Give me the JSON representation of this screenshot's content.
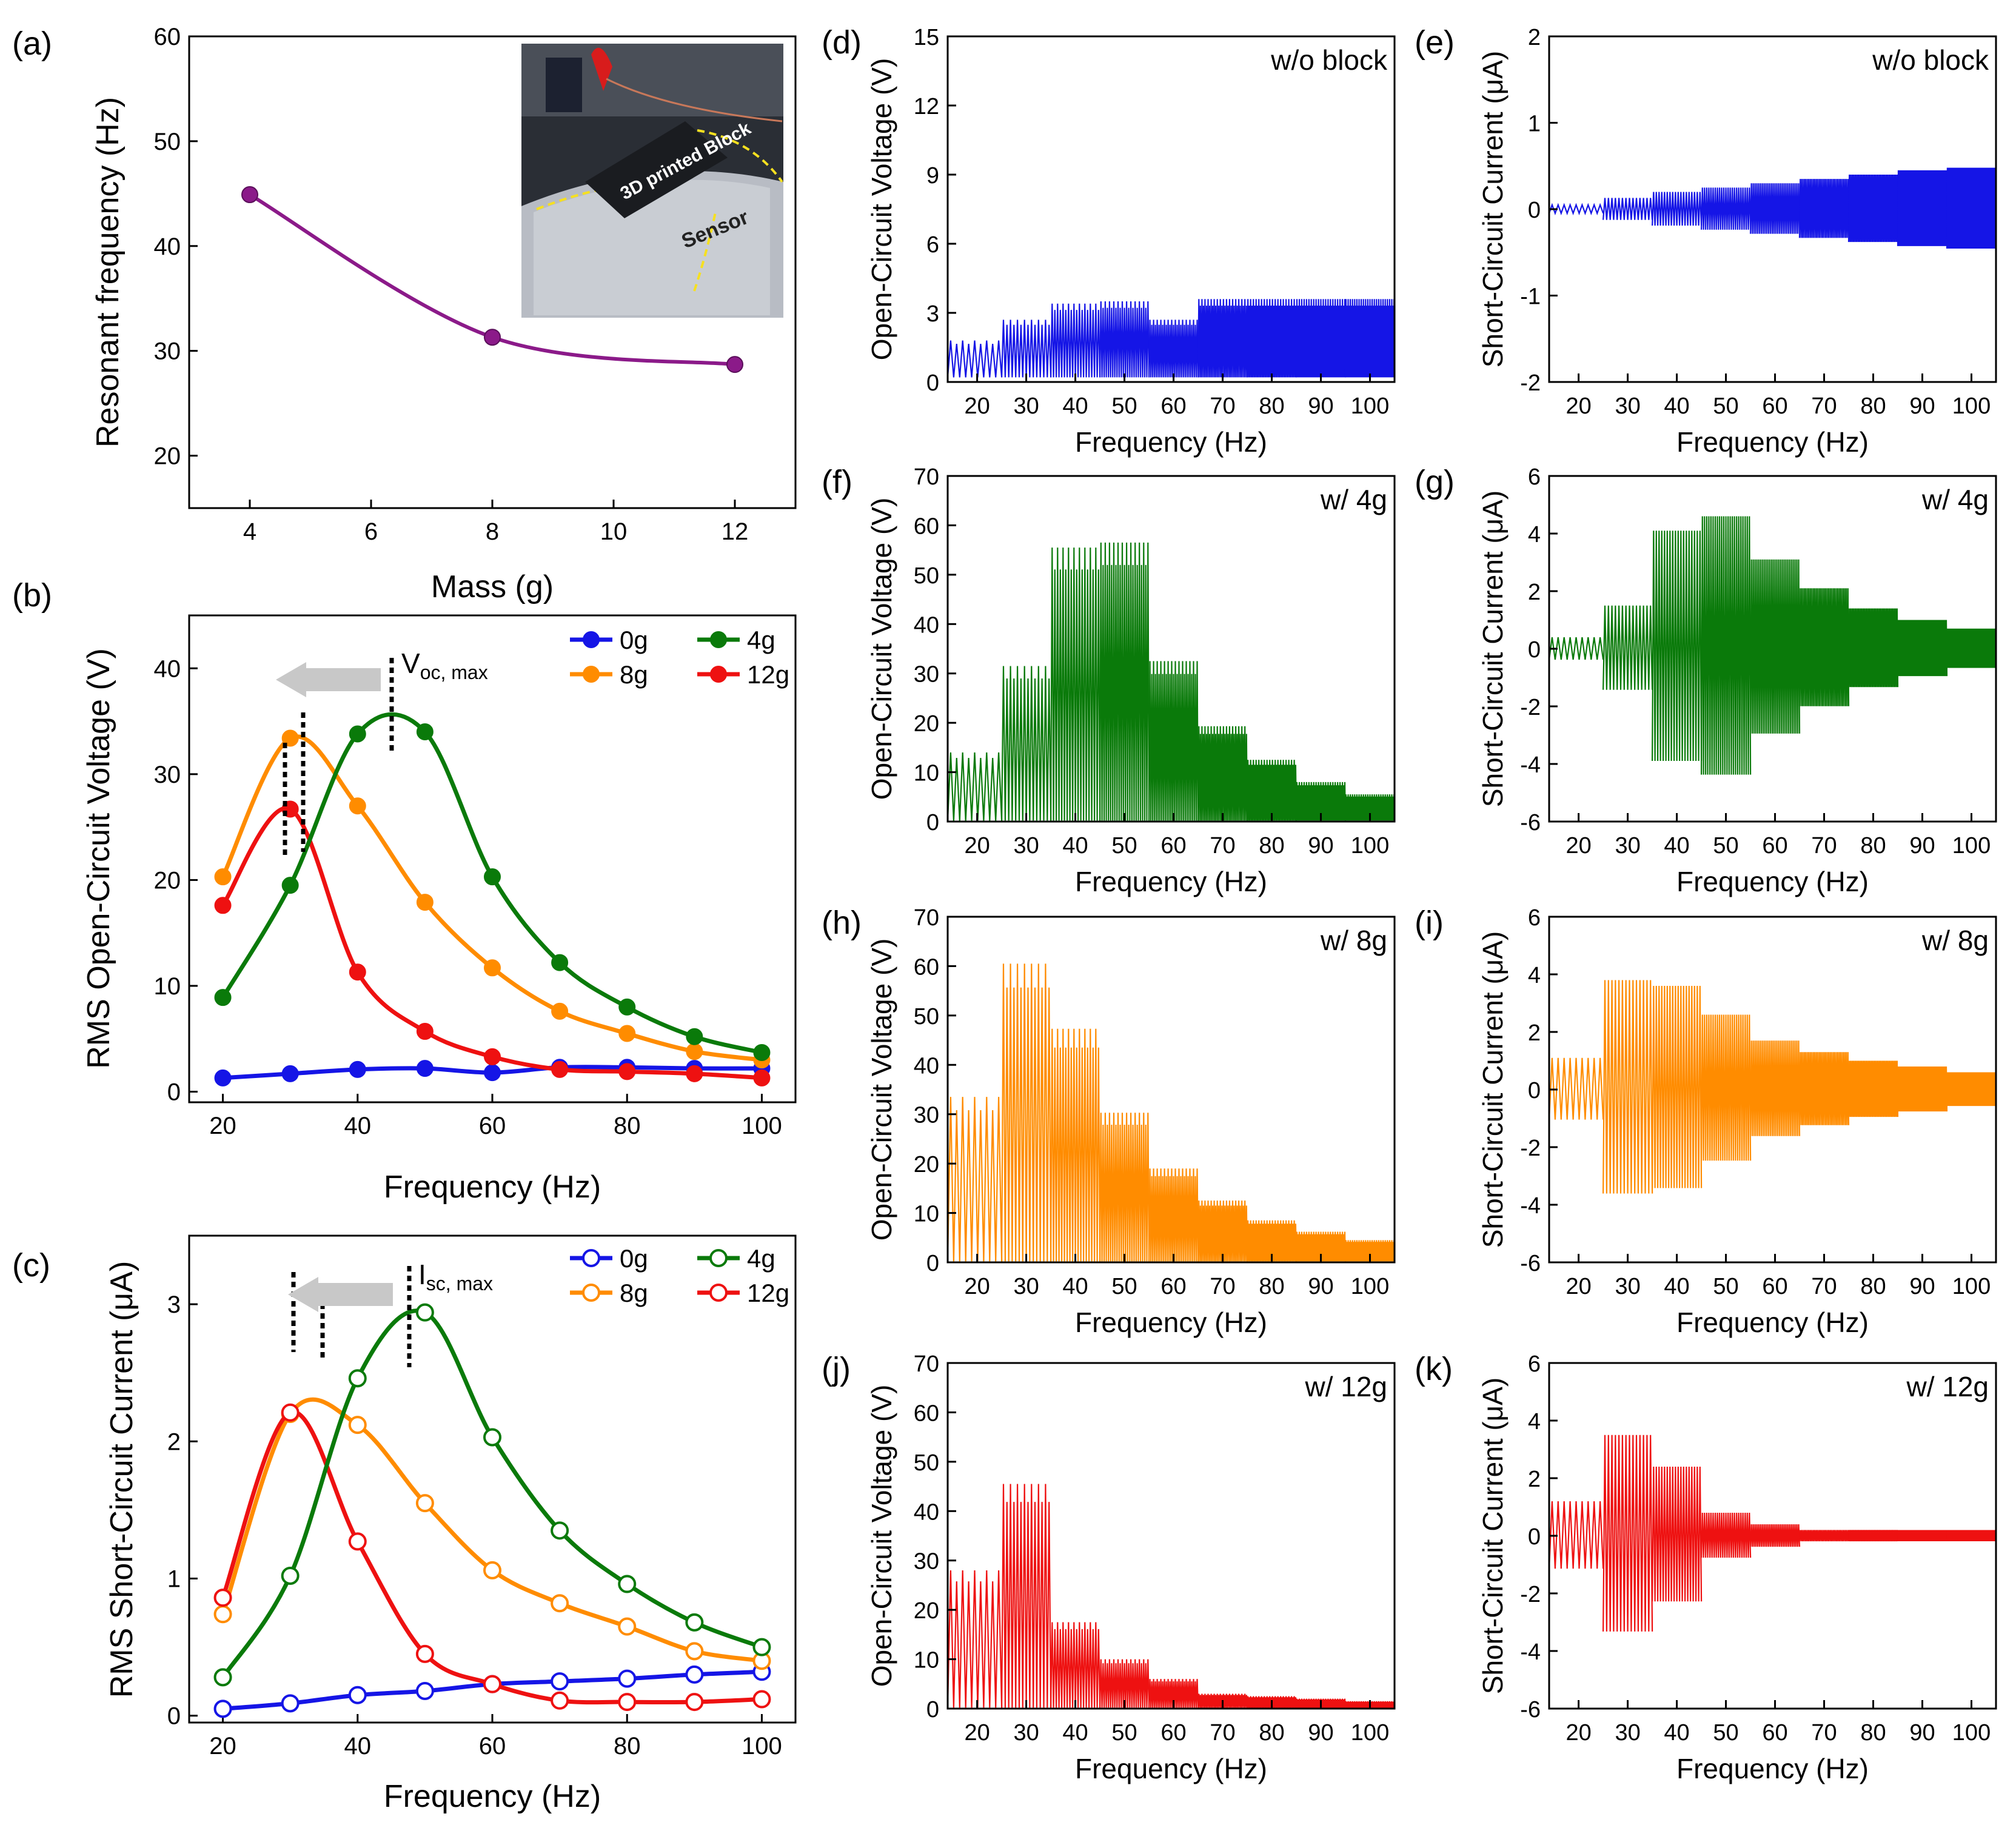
{
  "colors": {
    "0g": "#1515e6",
    "4g": "#0a7a0a",
    "8g": "#ff8c00",
    "12g": "#ee1111",
    "mass": "#8b1a89"
  },
  "panel_a": {
    "letter": "(a)",
    "inset_block_text": "3D printed Block",
    "inset_sensor_text": "Sensor",
    "chart_data": {
      "type": "line",
      "title": "",
      "x": [
        4,
        8,
        12
      ],
      "values": [
        44.9,
        31.3,
        28.7
      ],
      "xlabel": "Mass (g)",
      "ylabel": "Resonant frequency (Hz)",
      "xlim": [
        3,
        13
      ],
      "ylim": [
        15,
        60
      ],
      "xticks": [
        "4",
        "6",
        "8",
        "10",
        "12"
      ],
      "yticks": [
        "20",
        "30",
        "40",
        "50",
        "60"
      ]
    }
  },
  "panel_b": {
    "letter": "(b)",
    "annotation_main": "V",
    "annotation_sub": "oc, max",
    "chart_data": {
      "type": "line",
      "x": [
        20,
        30,
        40,
        50,
        60,
        70,
        80,
        90,
        100
      ],
      "series": [
        {
          "name": "0g",
          "values": [
            1.3,
            1.7,
            2.1,
            2.2,
            1.8,
            2.3,
            2.3,
            2.2,
            2.2
          ]
        },
        {
          "name": "4g",
          "values": [
            8.9,
            19.5,
            33.8,
            34.0,
            20.3,
            12.2,
            8.0,
            5.2,
            3.7
          ]
        },
        {
          "name": "8g",
          "values": [
            20.3,
            33.4,
            27.0,
            17.9,
            11.7,
            7.6,
            5.5,
            3.8,
            3.0
          ]
        },
        {
          "name": "12g",
          "values": [
            17.6,
            26.7,
            11.3,
            5.7,
            3.3,
            2.1,
            1.9,
            1.7,
            1.3
          ]
        }
      ],
      "xlabel": "Frequency (Hz)",
      "ylabel": "RMS Open-Circuit Voltage (V)",
      "xlim": [
        15,
        105
      ],
      "ylim": [
        -1,
        45
      ],
      "xticks": [
        "20",
        "40",
        "60",
        "80",
        "100"
      ],
      "yticks": [
        "0",
        "10",
        "20",
        "30",
        "40"
      ],
      "legend": [
        "0g",
        "4g",
        "8g",
        "12g"
      ]
    }
  },
  "panel_c": {
    "letter": "(c)",
    "annotation_main": "I",
    "annotation_sub": "sc, max",
    "chart_data": {
      "type": "line",
      "x": [
        20,
        30,
        40,
        50,
        60,
        70,
        80,
        90,
        100
      ],
      "series": [
        {
          "name": "0g",
          "values": [
            0.05,
            0.09,
            0.15,
            0.18,
            0.23,
            0.25,
            0.27,
            0.3,
            0.32
          ]
        },
        {
          "name": "4g",
          "values": [
            0.28,
            1.02,
            2.46,
            2.94,
            2.03,
            1.35,
            0.96,
            0.68,
            0.5
          ]
        },
        {
          "name": "8g",
          "values": [
            0.74,
            2.2,
            2.12,
            1.55,
            1.06,
            0.82,
            0.65,
            0.47,
            0.4
          ]
        },
        {
          "name": "12g",
          "values": [
            0.86,
            2.21,
            1.27,
            0.45,
            0.23,
            0.11,
            0.1,
            0.1,
            0.12
          ]
        }
      ],
      "xlabel": "Frequency (Hz)",
      "ylabel": "RMS Short-Circuit Current (μA)",
      "xlim": [
        15,
        105
      ],
      "ylim": [
        -0.05,
        3.5
      ],
      "xticks": [
        "20",
        "40",
        "60",
        "80",
        "100"
      ],
      "yticks": [
        "0",
        "1",
        "2",
        "3"
      ],
      "legend": [
        "0g",
        "4g",
        "8g",
        "12g"
      ]
    }
  },
  "time_axis": {
    "xlabel": "Frequency (Hz)",
    "xlim": [
      14,
      105
    ],
    "xticks": [
      "20",
      "30",
      "40",
      "50",
      "60",
      "70",
      "80",
      "90",
      "100"
    ]
  },
  "panels_right": [
    {
      "id": "d",
      "letter": "(d)",
      "label": "w/o block",
      "kind": "voltage",
      "color_key": "0g",
      "ylabel": "Open-Circuit Voltage (V)",
      "ylim": [
        0,
        15
      ],
      "yticks": [
        "0",
        "3",
        "6",
        "9",
        "12",
        "15"
      ],
      "chart_data": {
        "type": "area",
        "segments": [
          [
            14,
            1.8
          ],
          [
            25,
            2.7
          ],
          [
            35,
            3.4
          ],
          [
            45,
            3.5
          ],
          [
            55,
            2.7
          ],
          [
            65,
            3.6
          ],
          [
            75,
            3.6
          ],
          [
            85,
            3.6
          ],
          [
            95,
            3.6
          ],
          [
            105,
            3.6
          ]
        ]
      }
    },
    {
      "id": "e",
      "letter": "(e)",
      "label": "w/o block",
      "kind": "current",
      "color_key": "0g",
      "ylabel": "Short-Circuit Current (μA)",
      "ylim": [
        -2,
        2
      ],
      "yticks": [
        "-2",
        "-1",
        "0",
        "1",
        "2"
      ],
      "chart_data": {
        "type": "area",
        "segments": [
          [
            14,
            0.05
          ],
          [
            25,
            0.13
          ],
          [
            35,
            0.2
          ],
          [
            45,
            0.25
          ],
          [
            55,
            0.3
          ],
          [
            65,
            0.35
          ],
          [
            75,
            0.4
          ],
          [
            85,
            0.45
          ],
          [
            95,
            0.48
          ],
          [
            105,
            0.48
          ]
        ]
      }
    },
    {
      "id": "f",
      "letter": "(f)",
      "label": "w/ 4g",
      "kind": "voltage",
      "color_key": "4g",
      "ylabel": "Open-Circuit Voltage (V)",
      "ylim": [
        0,
        70
      ],
      "yticks": [
        "0",
        "10",
        "20",
        "30",
        "40",
        "50",
        "60",
        "70"
      ],
      "chart_data": {
        "type": "area",
        "segments": [
          [
            14,
            14
          ],
          [
            25,
            31.5
          ],
          [
            35,
            55.5
          ],
          [
            45,
            56.5
          ],
          [
            55,
            32.5
          ],
          [
            65,
            19.3
          ],
          [
            75,
            12.5
          ],
          [
            85,
            8
          ],
          [
            95,
            5.5
          ],
          [
            105,
            5.5
          ]
        ]
      }
    },
    {
      "id": "g",
      "letter": "(g)",
      "label": "w/ 4g",
      "kind": "current",
      "color_key": "4g",
      "ylabel": "Short-Circuit Current (μA)",
      "ylim": [
        -6,
        6
      ],
      "yticks": [
        "-6",
        "-4",
        "-2",
        "0",
        "2",
        "4",
        "6"
      ],
      "chart_data": {
        "type": "area",
        "segments": [
          [
            14,
            0.4
          ],
          [
            25,
            1.5
          ],
          [
            35,
            4.1
          ],
          [
            45,
            4.6
          ],
          [
            55,
            3.1
          ],
          [
            65,
            2.1
          ],
          [
            75,
            1.4
          ],
          [
            85,
            1.0
          ],
          [
            95,
            0.7
          ],
          [
            105,
            0.7
          ]
        ]
      }
    },
    {
      "id": "h",
      "letter": "(h)",
      "label": "w/ 8g",
      "kind": "voltage",
      "color_key": "8g",
      "ylabel": "Open-Circuit Voltage (V)",
      "ylim": [
        0,
        70
      ],
      "yticks": [
        "0",
        "10",
        "20",
        "30",
        "40",
        "50",
        "60",
        "70"
      ],
      "chart_data": {
        "type": "area",
        "segments": [
          [
            14,
            33.5
          ],
          [
            25,
            60.5
          ],
          [
            35,
            47.3
          ],
          [
            45,
            30.3
          ],
          [
            55,
            19
          ],
          [
            65,
            12.5
          ],
          [
            75,
            8.5
          ],
          [
            85,
            6.2
          ],
          [
            95,
            4.5
          ],
          [
            105,
            4.5
          ]
        ]
      }
    },
    {
      "id": "i",
      "letter": "(i)",
      "label": "w/ 8g",
      "kind": "current",
      "color_key": "8g",
      "ylabel": "Short-Circuit Current (μA)",
      "ylim": [
        -6,
        6
      ],
      "yticks": [
        "-6",
        "-4",
        "-2",
        "0",
        "2",
        "4",
        "6"
      ],
      "chart_data": {
        "type": "area",
        "segments": [
          [
            14,
            1.1
          ],
          [
            25,
            3.8
          ],
          [
            35,
            3.6
          ],
          [
            45,
            2.6
          ],
          [
            55,
            1.7
          ],
          [
            65,
            1.3
          ],
          [
            75,
            1.0
          ],
          [
            85,
            0.8
          ],
          [
            95,
            0.6
          ],
          [
            105,
            0.6
          ]
        ]
      }
    },
    {
      "id": "j",
      "letter": "(j)",
      "label": "w/ 12g",
      "kind": "voltage",
      "color_key": "12g",
      "ylabel": "Open-Circuit Voltage (V)",
      "ylim": [
        0,
        70
      ],
      "yticks": [
        "0",
        "10",
        "20",
        "30",
        "40",
        "50",
        "60",
        "70"
      ],
      "chart_data": {
        "type": "area",
        "segments": [
          [
            14,
            28
          ],
          [
            25,
            45.5
          ],
          [
            35,
            17.5
          ],
          [
            45,
            10
          ],
          [
            55,
            6
          ],
          [
            65,
            3
          ],
          [
            75,
            2.5
          ],
          [
            85,
            2
          ],
          [
            95,
            1.5
          ],
          [
            105,
            1.5
          ]
        ]
      }
    },
    {
      "id": "k",
      "letter": "(k)",
      "label": "w/ 12g",
      "kind": "current",
      "color_key": "12g",
      "ylabel": "Short-Circuit Current (μA)",
      "ylim": [
        -6,
        6
      ],
      "yticks": [
        "-6",
        "-4",
        "-2",
        "0",
        "2",
        "4",
        "6"
      ],
      "chart_data": {
        "type": "area",
        "segments": [
          [
            14,
            1.2
          ],
          [
            25,
            3.5
          ],
          [
            35,
            2.4
          ],
          [
            45,
            0.8
          ],
          [
            55,
            0.4
          ],
          [
            65,
            0.2
          ],
          [
            75,
            0.2
          ],
          [
            85,
            0.2
          ],
          [
            95,
            0.2
          ],
          [
            105,
            0.2
          ]
        ]
      }
    }
  ]
}
